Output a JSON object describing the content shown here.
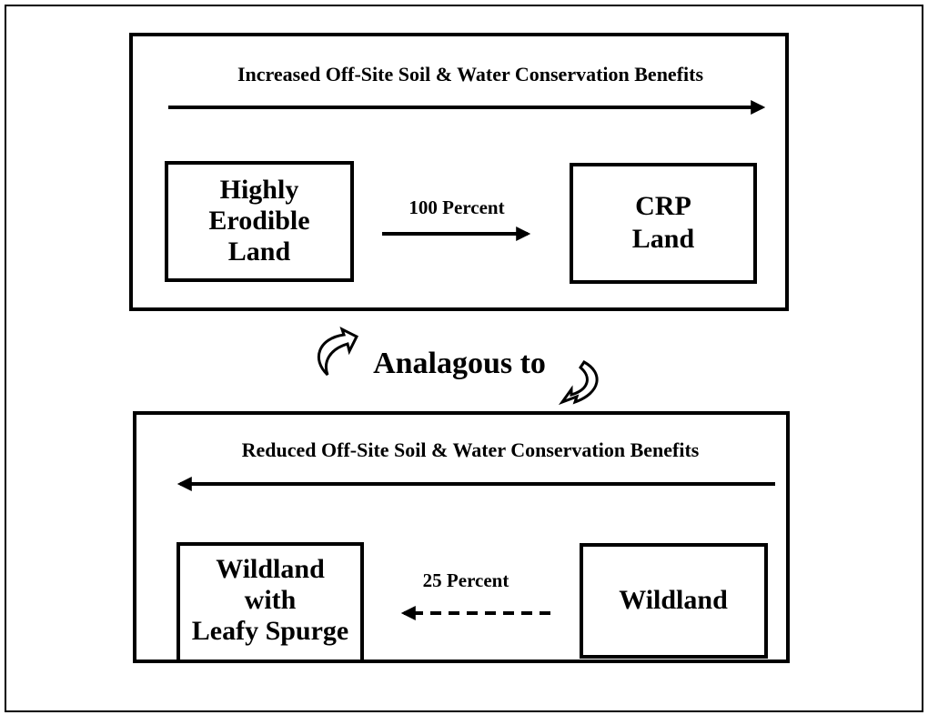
{
  "top_panel": {
    "heading": "Increased Off-Site Soil & Water Conservation Benefits",
    "source": {
      "lines": [
        "Highly",
        "Erodible",
        "Land"
      ]
    },
    "arrow_label": "100 Percent",
    "target": {
      "lines": [
        "CRP",
        "Land"
      ]
    }
  },
  "connector": "Analagous to",
  "bottom_panel": {
    "heading": "Reduced Off-Site Soil & Water Conservation Benefits",
    "target": {
      "lines": [
        "Wildland",
        "with",
        "Leafy Spurge"
      ]
    },
    "arrow_label": "25 Percent",
    "source": {
      "lines": [
        "Wildland"
      ]
    }
  }
}
